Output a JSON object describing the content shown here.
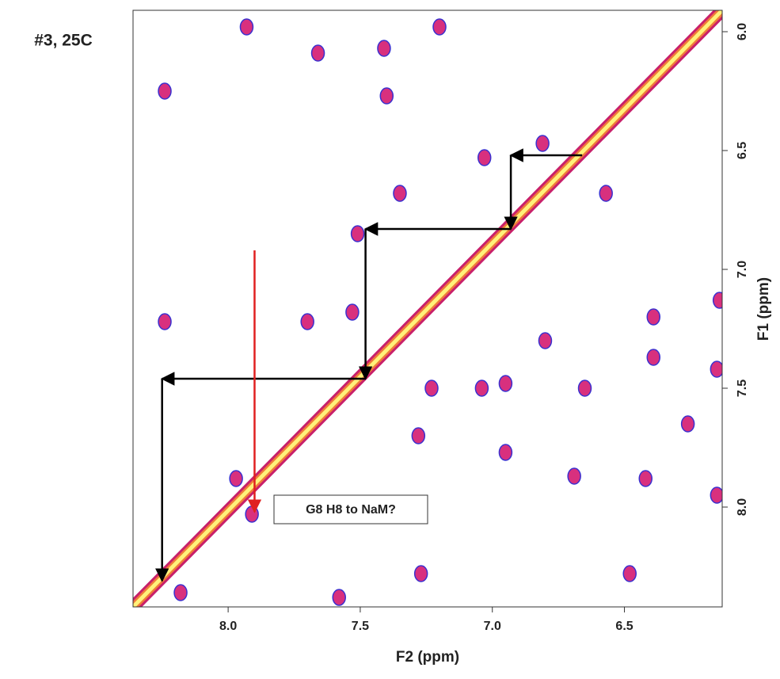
{
  "chart_data": {
    "type": "contour",
    "title": "#3, 25C",
    "x_label": "F2 (ppm)",
    "y_label": "F1 (ppm)",
    "xlim": [
      8.36,
      6.13
    ],
    "ylim": [
      8.42,
      5.91
    ],
    "xticks": [
      {
        "value": 8,
        "label": "8.0"
      },
      7.5,
      {
        "value": 7,
        "label": "7.0"
      },
      6.5
    ],
    "yticks": [
      {
        "value": 6,
        "label": "6.0"
      },
      6.5,
      {
        "value": 7,
        "label": "7.0"
      },
      7.5,
      {
        "value": 8,
        "label": "8.0"
      }
    ],
    "diagonal": {
      "x": [
        6.13,
        8.36
      ],
      "y": [
        5.91,
        8.42
      ]
    },
    "peaks": {
      "color": "#d8307e",
      "x": [
        7.93,
        7.66,
        7.41,
        7.2,
        8.24,
        7.4,
        7.51,
        7.35,
        7.03,
        6.81,
        6.57,
        8.24,
        7.7,
        7.53,
        6.14,
        6.39,
        6.8,
        6.39,
        6.15,
        7.23,
        7.04,
        6.95,
        6.65,
        6.26,
        7.28,
        6.95,
        6.69,
        6.42,
        6.15,
        7.97,
        7.91,
        7.27,
        6.48,
        8.18,
        7.58
      ],
      "y": [
        5.98,
        6.09,
        6.07,
        5.98,
        6.25,
        6.27,
        6.85,
        6.68,
        6.53,
        6.47,
        6.68,
        7.22,
        7.22,
        7.18,
        7.13,
        7.2,
        7.3,
        7.37,
        7.42,
        7.5,
        7.5,
        7.48,
        7.5,
        7.65,
        7.7,
        7.77,
        7.87,
        7.88,
        7.95,
        7.88,
        8.03,
        8.28,
        8.28,
        8.36,
        8.38
      ]
    },
    "walk": {
      "color": "#000000",
      "x": [
        6.66,
        6.93,
        6.93,
        7.48,
        7.48,
        8.25,
        8.25
      ],
      "y": [
        6.52,
        6.52,
        6.83,
        6.83,
        7.46,
        7.46,
        8.31
      ]
    },
    "annotation": {
      "text": "G8 H8 to NaM?",
      "color": "#e02020",
      "x": 7.9,
      "y_from": 6.92,
      "y_to": 8.02
    }
  }
}
